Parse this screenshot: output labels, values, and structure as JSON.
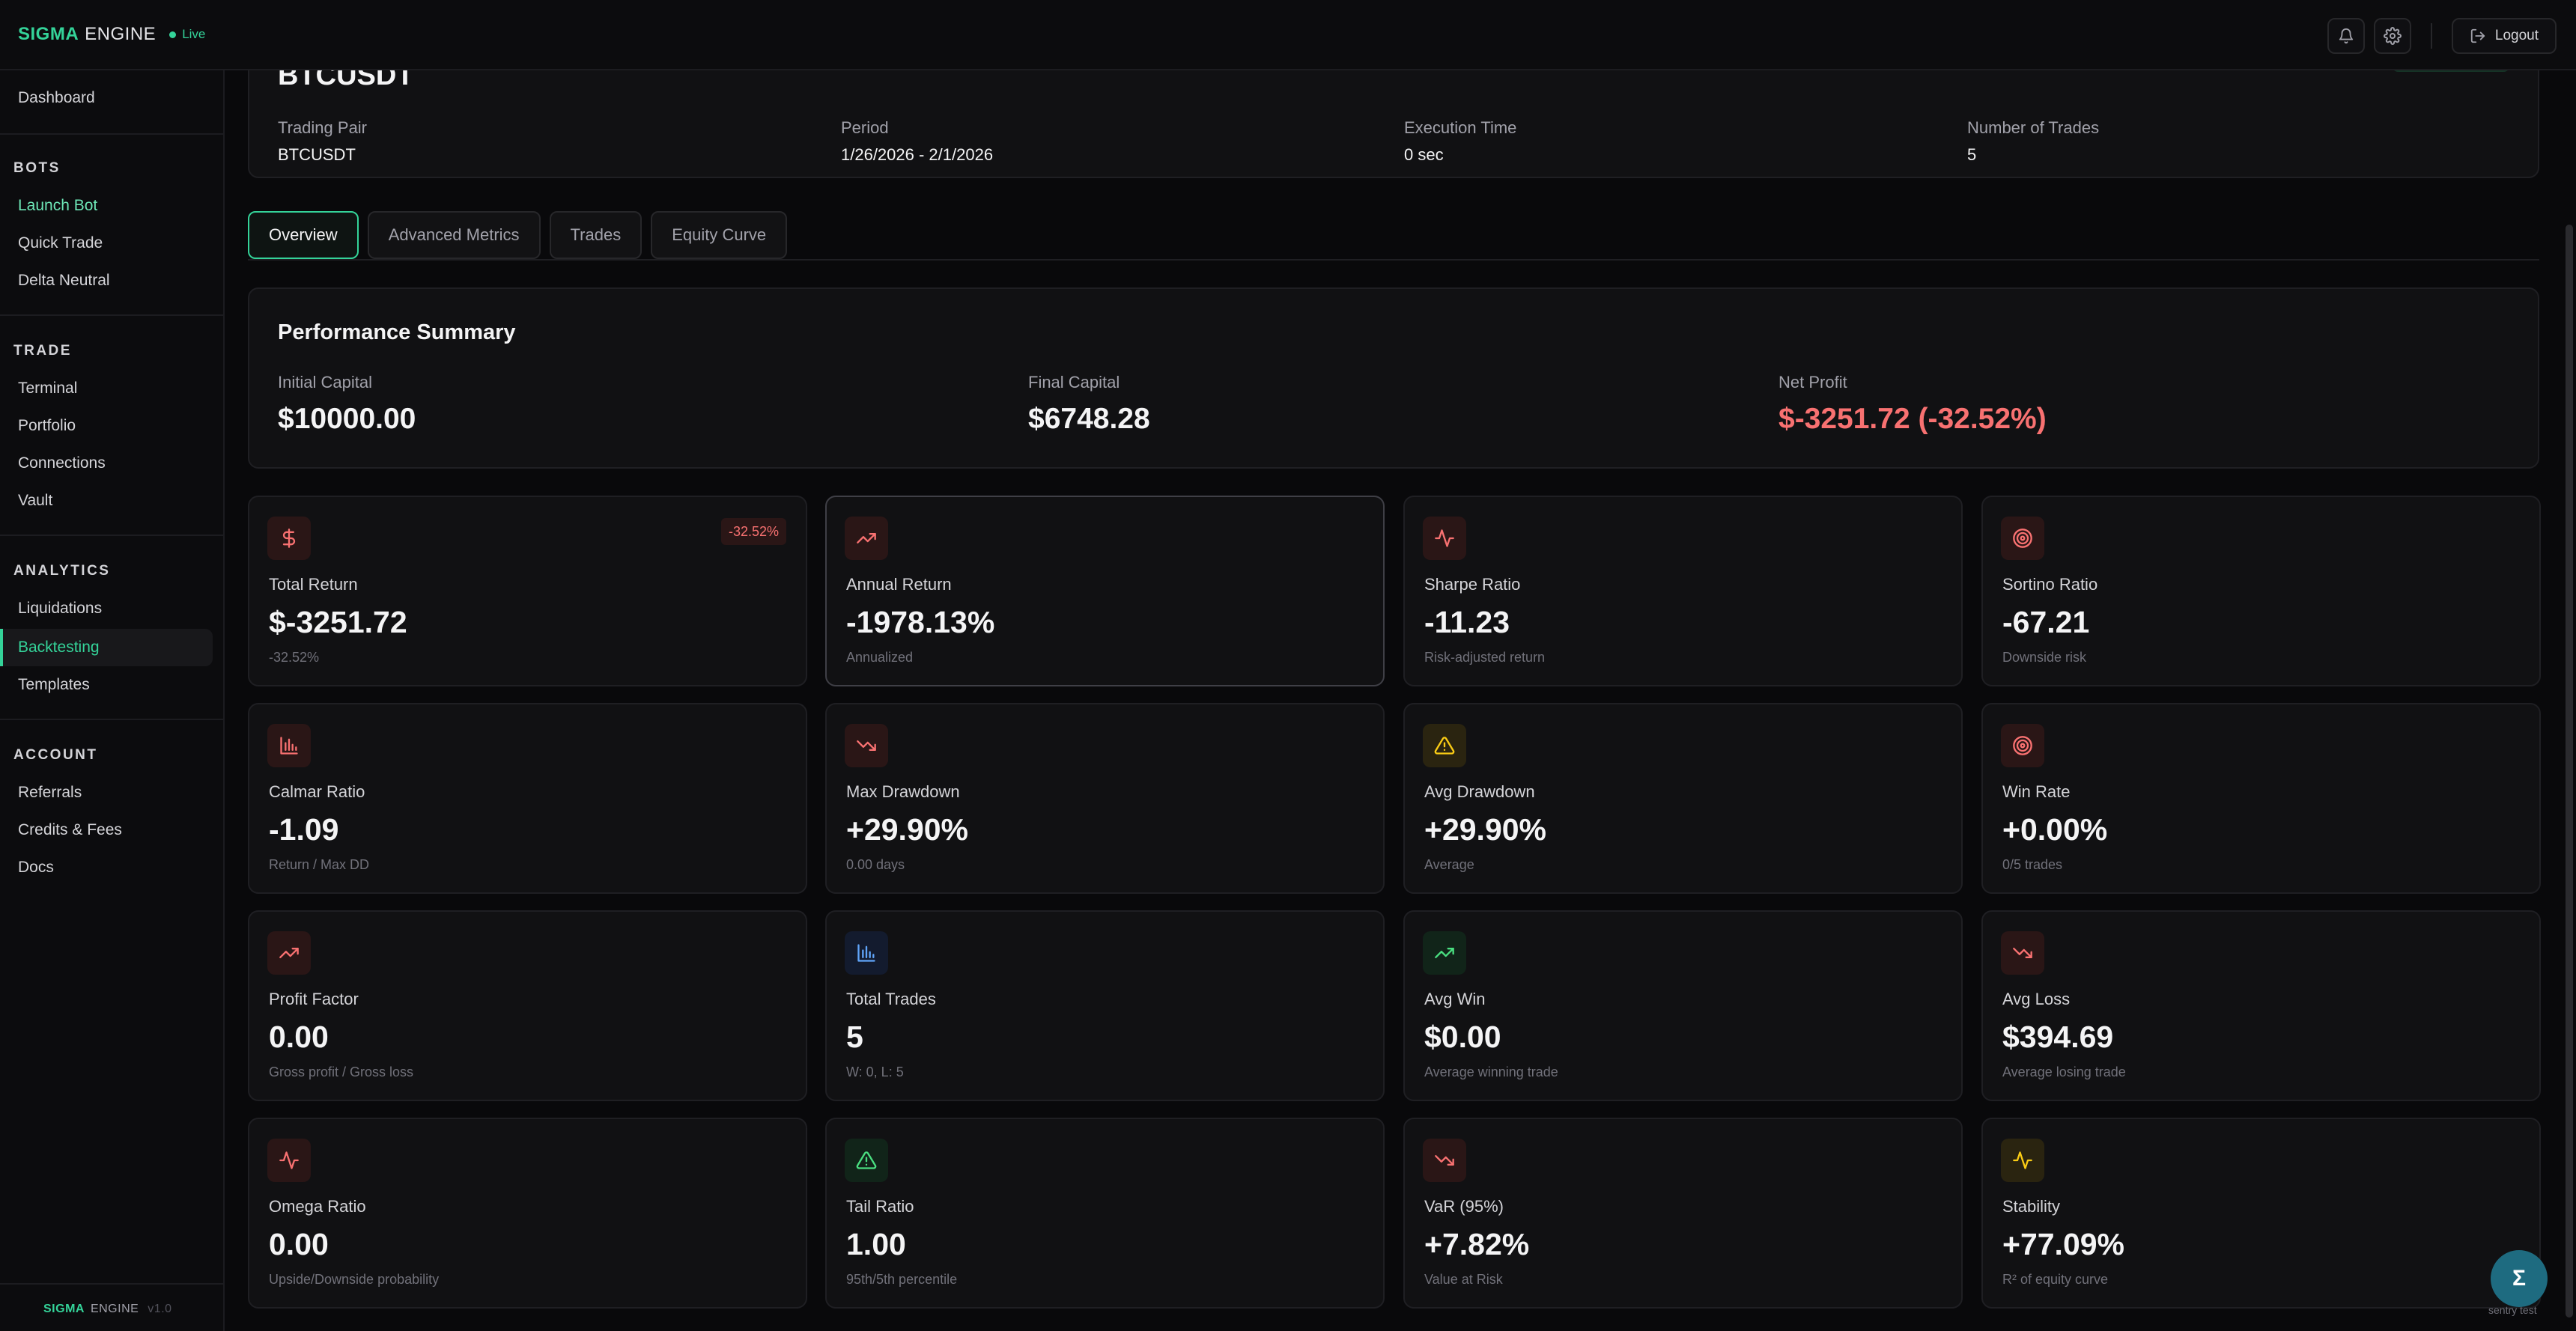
{
  "topbar": {
    "brand_primary": "SIGMA",
    "brand_secondary": "ENGINE",
    "live_label": "Live",
    "logout_label": "Logout",
    "icons": [
      "bell-icon",
      "gear-icon",
      "logout-icon"
    ]
  },
  "sidebar": {
    "dashboard": "Dashboard",
    "sections": [
      {
        "heading": "BOTS",
        "items": [
          "Launch Bot",
          "Quick Trade",
          "Delta Neutral"
        ]
      },
      {
        "heading": "TRADE",
        "items": [
          "Terminal",
          "Portfolio",
          "Connections",
          "Vault"
        ]
      },
      {
        "heading": "ANALYTICS",
        "items": [
          "Liquidations",
          "Backtesting",
          "Templates"
        ]
      },
      {
        "heading": "ACCOUNT",
        "items": [
          "Referrals",
          "Credits & Fees",
          "Docs"
        ]
      }
    ],
    "active_item": "Backtesting",
    "footer_primary": "SIGMA",
    "footer_secondary": "ENGINE",
    "footer_version": "v1.0"
  },
  "info": {
    "title": "BTCUSDT",
    "columns": [
      {
        "label": "Trading Pair",
        "value": "BTCUSDT"
      },
      {
        "label": "Period",
        "value": "1/26/2026 - 2/1/2026"
      },
      {
        "label": "Execution Time",
        "value": "0 sec"
      },
      {
        "label": "Number of Trades",
        "value": "5"
      }
    ]
  },
  "tabs": [
    "Overview",
    "Advanced Metrics",
    "Trades",
    "Equity Curve"
  ],
  "active_tab": "Overview",
  "performance": {
    "title": "Performance Summary",
    "columns": [
      {
        "label": "Initial Capital",
        "value": "$10000.00"
      },
      {
        "label": "Final Capital",
        "value": "$6748.28"
      },
      {
        "label": "Net Profit",
        "value": "$-3251.72 (-32.52%)"
      }
    ]
  },
  "metrics": [
    {
      "title": "Total Return",
      "value": "$-3251.72",
      "sub": "-32.52%",
      "badge": "-32.52%",
      "icon": "dollar-icon",
      "tone": "red",
      "icon_color": "#f87171"
    },
    {
      "title": "Annual Return",
      "value": "-1978.13%",
      "sub": "Annualized",
      "icon": "trending-up-icon",
      "tone": "red",
      "icon_color": "#f87171"
    },
    {
      "title": "Sharpe Ratio",
      "value": "-11.23",
      "sub": "Risk-adjusted return",
      "icon": "activity-icon",
      "tone": "red",
      "icon_color": "#f87171"
    },
    {
      "title": "Sortino Ratio",
      "value": "-67.21",
      "sub": "Downside risk",
      "icon": "target-icon",
      "tone": "red",
      "icon_color": "#f87171"
    },
    {
      "title": "Calmar Ratio",
      "value": "-1.09",
      "sub": "Return / Max DD",
      "icon": "bar-chart-icon",
      "tone": "red",
      "icon_color": "#f87171"
    },
    {
      "title": "Max Drawdown",
      "value": "+29.90%",
      "sub": "0.00 days",
      "icon": "trending-down-icon",
      "tone": "red",
      "icon_color": "#f87171"
    },
    {
      "title": "Avg Drawdown",
      "value": "+29.90%",
      "sub": "Average",
      "icon": "warning-icon",
      "tone": "yellow",
      "icon_color": "#facc15"
    },
    {
      "title": "Win Rate",
      "value": "+0.00%",
      "sub": "0/5 trades",
      "icon": "target-icon",
      "tone": "red",
      "icon_color": "#f87171"
    },
    {
      "title": "Profit Factor",
      "value": "0.00",
      "sub": "Gross profit / Gross loss",
      "icon": "trending-up-icon",
      "tone": "red",
      "icon_color": "#f87171"
    },
    {
      "title": "Total Trades",
      "value": "5",
      "sub": "W: 0, L: 5",
      "icon": "bar-chart-icon",
      "tone": "blue",
      "icon_color": "#60a5fa"
    },
    {
      "title": "Avg Win",
      "value": "$0.00",
      "sub": "Average winning trade",
      "icon": "trending-up-icon",
      "tone": "green",
      "icon_color": "#4ade80"
    },
    {
      "title": "Avg Loss",
      "value": "$394.69",
      "sub": "Average losing trade",
      "icon": "trending-down-icon",
      "tone": "red",
      "icon_color": "#f87171"
    },
    {
      "title": "Omega Ratio",
      "value": "0.00",
      "sub": "Upside/Downside probability",
      "icon": "activity-icon",
      "tone": "red",
      "icon_color": "#f87171"
    },
    {
      "title": "Tail Ratio",
      "value": "1.00",
      "sub": "95th/5th percentile",
      "icon": "warning-icon",
      "tone": "green",
      "icon_color": "#4ade80"
    },
    {
      "title": "VaR (95%)",
      "value": "+7.82%",
      "sub": "Value at Risk",
      "icon": "trending-down-icon",
      "tone": "red",
      "icon_color": "#f87171"
    },
    {
      "title": "Stability",
      "value": "+77.09%",
      "sub": "R² of equity curve",
      "icon": "activity-icon",
      "tone": "yellow",
      "icon_color": "#facc15"
    }
  ],
  "fab": {
    "glyph": "Σ",
    "label": "sentry test"
  },
  "colors": {
    "accent": "#34d399",
    "negative": "#f87171",
    "background": "#09090b",
    "card": "#111113"
  }
}
